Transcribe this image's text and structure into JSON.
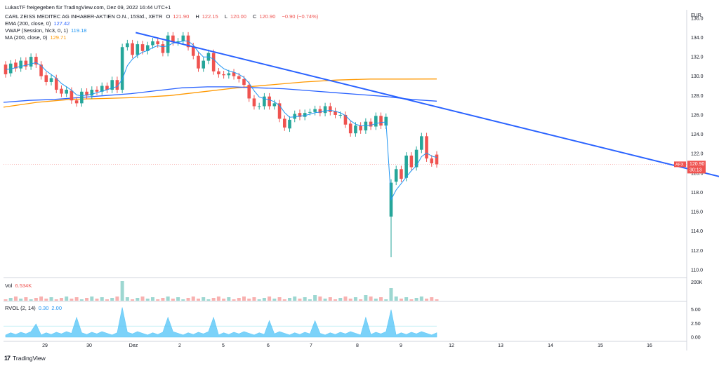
{
  "header": {
    "publisher": "LukasTF freigegeben für TradingView.com, Dez 09, 2022 16:44 UTC+1",
    "symbol_line": "CARL ZEISS MEDITEC AG INHABER-AKTIEN O.N., 15Std., XETR",
    "ohlc": {
      "o_label": "O",
      "o": "121.90",
      "h_label": "H",
      "h": "122.15",
      "l_label": "L",
      "l": "120.00",
      "c_label": "C",
      "c": "120.90",
      "change": "−0.90 (−0.74%)"
    },
    "indicators": [
      {
        "label": "EMA (200, close, 0)",
        "value": "127.42",
        "color": "#2962ff"
      },
      {
        "label": "VWAP (Session, hlc3, 0, 1)",
        "value": "119.18",
        "color": "#2196f3"
      },
      {
        "label": "MA (200, close, 0)",
        "value": "129.71",
        "color": "#ff9800"
      }
    ]
  },
  "currency": "EUR",
  "price_badge": {
    "symbol": "AFX",
    "price": "120.90",
    "timer": "30:13",
    "color": "#f23645"
  },
  "vol_panel": {
    "label": "Vol",
    "value": "6.534K",
    "axis_label": "200K"
  },
  "rvol_panel": {
    "label": "RVOL (2, 14)",
    "v1": "0.30",
    "v2": "2.00",
    "ticks": [
      "5.00",
      "2.50",
      "0.00"
    ]
  },
  "footer_brand": "TradingView",
  "colors": {
    "up": "#26a69a",
    "down": "#ef5350",
    "ema": "#2962ff",
    "vwap": "#2196f3",
    "ma": "#ff9800",
    "trend": "#2962ff",
    "rvol": "#4fc3f7"
  },
  "chart_data": {
    "type": "candlestick",
    "y_axis": {
      "ticks": [
        110,
        112,
        114,
        116,
        118,
        120,
        122,
        124,
        126,
        128,
        130,
        132,
        134,
        136
      ],
      "ylim": [
        109.2,
        137.0
      ]
    },
    "x_ticks": [
      "29",
      "30",
      "Dez",
      "2",
      "5",
      "6",
      "7",
      "8",
      "9",
      "12",
      "13",
      "14",
      "15",
      "16"
    ],
    "ohlc_open_to_close": [
      [
        131.2,
        130.2
      ],
      [
        130.3,
        131.3
      ],
      [
        131.4,
        130.8
      ],
      [
        130.8,
        131.6
      ],
      [
        131.6,
        131.0
      ],
      [
        131.0,
        132.0
      ],
      [
        132.0,
        131.2
      ],
      [
        131.2,
        130.0
      ],
      [
        130.1,
        129.4
      ],
      [
        129.4,
        129.8
      ],
      [
        129.8,
        128.6
      ],
      [
        128.7,
        128.2
      ],
      [
        128.2,
        128.6
      ],
      [
        128.5,
        127.5
      ],
      [
        127.5,
        127.2
      ],
      [
        127.2,
        128.4
      ],
      [
        128.4,
        128.0
      ],
      [
        128.0,
        128.6
      ],
      [
        128.6,
        128.4
      ],
      [
        128.4,
        129.0
      ],
      [
        129.0,
        128.6
      ],
      [
        128.6,
        129.6
      ],
      [
        129.6,
        128.6
      ],
      [
        128.6,
        133.0
      ],
      [
        133.0,
        133.4
      ],
      [
        133.4,
        132.2
      ],
      [
        132.2,
        133.3
      ],
      [
        133.3,
        132.6
      ],
      [
        132.6,
        133.2
      ],
      [
        133.2,
        133.6
      ],
      [
        133.6,
        133.3
      ],
      [
        133.3,
        132.4
      ],
      [
        132.4,
        134.2
      ],
      [
        134.2,
        133.5
      ],
      [
        133.5,
        133.6
      ],
      [
        133.6,
        134.2
      ],
      [
        134.2,
        133.0
      ],
      [
        133.1,
        132.1
      ],
      [
        132.1,
        130.8
      ],
      [
        130.8,
        131.6
      ],
      [
        131.6,
        132.4
      ],
      [
        132.4,
        130.5
      ],
      [
        130.5,
        130.2
      ],
      [
        130.2,
        130.1
      ],
      [
        130.1,
        130.3
      ],
      [
        130.4,
        130.0
      ],
      [
        130.0,
        129.7
      ],
      [
        129.7,
        129.1
      ],
      [
        129.1,
        127.7
      ],
      [
        127.7,
        126.9
      ],
      [
        126.9,
        126.9
      ],
      [
        126.9,
        127.9
      ],
      [
        127.9,
        126.9
      ],
      [
        126.9,
        127.2
      ],
      [
        127.2,
        125.6
      ],
      [
        125.6,
        124.7
      ],
      [
        124.6,
        125.5
      ],
      [
        125.6,
        126.1
      ],
      [
        126.2,
        125.8
      ],
      [
        125.8,
        126.2
      ],
      [
        126.3,
        126.3
      ],
      [
        126.3,
        126.6
      ],
      [
        126.6,
        126.2
      ],
      [
        126.2,
        126.9
      ],
      [
        126.9,
        126.3
      ],
      [
        126.4,
        126.0
      ],
      [
        126.0,
        126.0
      ],
      [
        126.0,
        125.0
      ],
      [
        125.1,
        124.1
      ],
      [
        124.1,
        124.9
      ],
      [
        124.9,
        124.4
      ],
      [
        124.4,
        125.3
      ],
      [
        125.3,
        124.8
      ],
      [
        124.8,
        125.9
      ],
      [
        125.9,
        124.9
      ],
      [
        124.9,
        125.8
      ],
      [
        115.5,
        119.0
      ],
      [
        119.1,
        120.4
      ],
      [
        120.4,
        119.4
      ],
      [
        119.5,
        121.8
      ],
      [
        121.8,
        120.6
      ],
      [
        120.6,
        122.4
      ],
      [
        122.4,
        123.8
      ],
      [
        123.8,
        121.5
      ],
      [
        121.5,
        121.0
      ],
      [
        121.9,
        120.9
      ]
    ],
    "wicks": [
      [
        115.5,
        111.3
      ],
      [
        126.0,
        124.0
      ],
      [
        122.2,
        120.0
      ]
    ],
    "ema_200": [
      127.3,
      127.5,
      127.6,
      127.8,
      128.0,
      128.2,
      128.5,
      128.8,
      128.9,
      128.9,
      128.8,
      128.7,
      128.5,
      128.3,
      128.1,
      127.9,
      127.6,
      127.42
    ],
    "ma_200": [
      126.8,
      127.3,
      127.6,
      127.7,
      127.8,
      128.0,
      128.4,
      128.8,
      129.1,
      129.4,
      129.6,
      129.7,
      129.7,
      129.71
    ],
    "trendline": {
      "from": [
        2.05,
        134.5
      ],
      "to": [
        14.45,
        119.6
      ]
    },
    "last_price": 120.9
  }
}
